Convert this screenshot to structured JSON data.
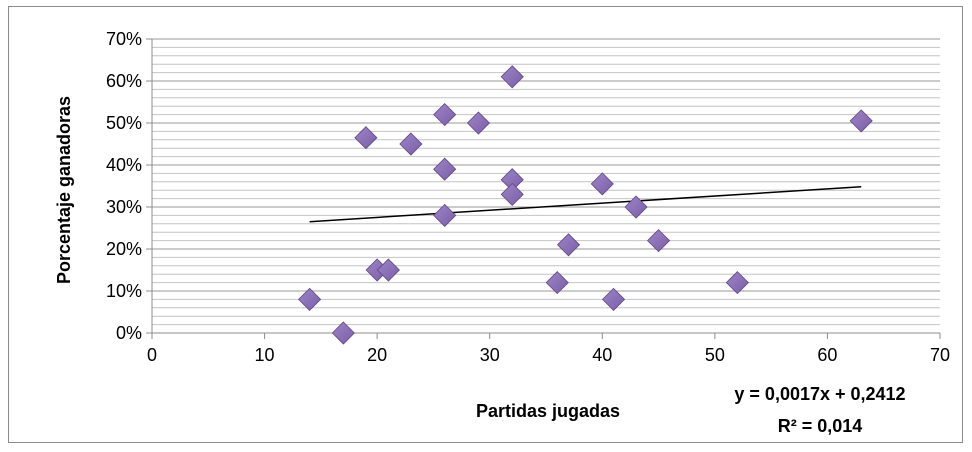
{
  "chart_data": {
    "type": "scatter",
    "xlabel": "Partidas jugadas",
    "ylabel": "Porcentaje ganadoras",
    "xlim": [
      0,
      70
    ],
    "ylim": [
      0,
      0.7
    ],
    "x_ticks": [
      "0",
      "10",
      "20",
      "30",
      "40",
      "50",
      "60",
      "70"
    ],
    "y_ticks": [
      "0%",
      "10%",
      "20%",
      "30%",
      "40%",
      "50%",
      "60%",
      "70%"
    ],
    "grid": "horizontal minor gridlines",
    "marker": "diamond",
    "marker_color": "#7b5ea7",
    "points": [
      {
        "x": 14,
        "y": 0.08
      },
      {
        "x": 17,
        "y": 0.0
      },
      {
        "x": 19,
        "y": 0.465
      },
      {
        "x": 20,
        "y": 0.15
      },
      {
        "x": 21,
        "y": 0.15
      },
      {
        "x": 23,
        "y": 0.45
      },
      {
        "x": 26,
        "y": 0.52
      },
      {
        "x": 26,
        "y": 0.39
      },
      {
        "x": 26,
        "y": 0.28
      },
      {
        "x": 29,
        "y": 0.5
      },
      {
        "x": 32,
        "y": 0.61
      },
      {
        "x": 32,
        "y": 0.365
      },
      {
        "x": 32,
        "y": 0.33
      },
      {
        "x": 36,
        "y": 0.12
      },
      {
        "x": 37,
        "y": 0.21
      },
      {
        "x": 40,
        "y": 0.355
      },
      {
        "x": 41,
        "y": 0.08
      },
      {
        "x": 43,
        "y": 0.3
      },
      {
        "x": 45,
        "y": 0.22
      },
      {
        "x": 52,
        "y": 0.12
      },
      {
        "x": 63,
        "y": 0.505
      }
    ],
    "trendline": {
      "type": "linear",
      "x_range": [
        14,
        63
      ],
      "slope": 0.0017,
      "intercept": 0.2412,
      "equation": "y = 0,0017x + 0,2412",
      "r_squared": "R² = 0,014"
    }
  }
}
